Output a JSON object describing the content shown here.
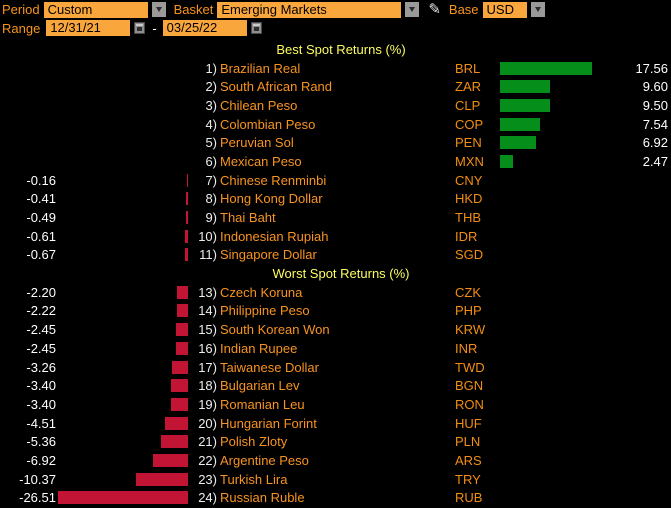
{
  "toolbar": {
    "period": {
      "label": "Period",
      "value": "Custom"
    },
    "basket": {
      "label": "Basket",
      "value": "Emerging Markets"
    },
    "base": {
      "label": "Base",
      "value": "USD"
    },
    "range": {
      "label": "Range",
      "start": "12/31/21",
      "separator": "-",
      "end": "03/25/22"
    }
  },
  "chart_data": {
    "type": "bar",
    "orientation": "horizontal",
    "unit": "%",
    "baseline": 0,
    "sections": [
      {
        "title": "Best Spot Returns (%)",
        "rows": [
          {
            "num": "1)",
            "name": "Brazilian Real",
            "ticker": "BRL",
            "value": 17.56,
            "display": "17.56"
          },
          {
            "num": "2)",
            "name": "South African Rand",
            "ticker": "ZAR",
            "value": 9.6,
            "display": "9.60"
          },
          {
            "num": "3)",
            "name": "Chilean Peso",
            "ticker": "CLP",
            "value": 9.5,
            "display": "9.50"
          },
          {
            "num": "4)",
            "name": "Colombian Peso",
            "ticker": "COP",
            "value": 7.54,
            "display": "7.54"
          },
          {
            "num": "5)",
            "name": "Peruvian Sol",
            "ticker": "PEN",
            "value": 6.92,
            "display": "6.92"
          },
          {
            "num": "6)",
            "name": "Mexican Peso",
            "ticker": "MXN",
            "value": 2.47,
            "display": "2.47"
          },
          {
            "num": "7)",
            "name": "Chinese Renminbi",
            "ticker": "CNY",
            "value": -0.16,
            "display": "-0.16"
          },
          {
            "num": "8)",
            "name": "Hong Kong Dollar",
            "ticker": "HKD",
            "value": -0.41,
            "display": "-0.41"
          },
          {
            "num": "9)",
            "name": "Thai Baht",
            "ticker": "THB",
            "value": -0.49,
            "display": "-0.49"
          },
          {
            "num": "10)",
            "name": "Indonesian Rupiah",
            "ticker": "IDR",
            "value": -0.61,
            "display": "-0.61"
          },
          {
            "num": "11)",
            "name": "Singapore Dollar",
            "ticker": "SGD",
            "value": -0.67,
            "display": "-0.67"
          }
        ]
      },
      {
        "title": "Worst Spot Returns (%)",
        "rows": [
          {
            "num": "13)",
            "name": "Czech Koruna",
            "ticker": "CZK",
            "value": -2.2,
            "display": "-2.20"
          },
          {
            "num": "14)",
            "name": "Philippine Peso",
            "ticker": "PHP",
            "value": -2.22,
            "display": "-2.22"
          },
          {
            "num": "15)",
            "name": "South Korean Won",
            "ticker": "KRW",
            "value": -2.45,
            "display": "-2.45"
          },
          {
            "num": "16)",
            "name": "Indian Rupee",
            "ticker": "INR",
            "value": -2.45,
            "display": "-2.45"
          },
          {
            "num": "17)",
            "name": "Taiwanese Dollar",
            "ticker": "TWD",
            "value": -3.26,
            "display": "-3.26"
          },
          {
            "num": "18)",
            "name": "Bulgarian Lev",
            "ticker": "BGN",
            "value": -3.4,
            "display": "-3.40"
          },
          {
            "num": "19)",
            "name": "Romanian Leu",
            "ticker": "RON",
            "value": -3.4,
            "display": "-3.40"
          },
          {
            "num": "20)",
            "name": "Hungarian Forint",
            "ticker": "HUF",
            "value": -4.51,
            "display": "-4.51"
          },
          {
            "num": "21)",
            "name": "Polish Zloty",
            "ticker": "PLN",
            "value": -5.36,
            "display": "-5.36"
          },
          {
            "num": "22)",
            "name": "Argentine Peso",
            "ticker": "ARS",
            "value": -6.92,
            "display": "-6.92"
          },
          {
            "num": "23)",
            "name": "Turkish Lira",
            "ticker": "TRY",
            "value": -10.37,
            "display": "-10.37"
          },
          {
            "num": "24)",
            "name": "Russian Ruble",
            "ticker": "RUB",
            "value": -26.51,
            "display": "-26.51"
          }
        ]
      }
    ]
  },
  "colors": {
    "positive_bar": "#058E1A",
    "negative_bar": "#C21536",
    "accent_orange": "#F79320",
    "field_orange": "#F9A63C",
    "header_yellow": "#FDFD60",
    "value_white": "#FFFFFF"
  }
}
